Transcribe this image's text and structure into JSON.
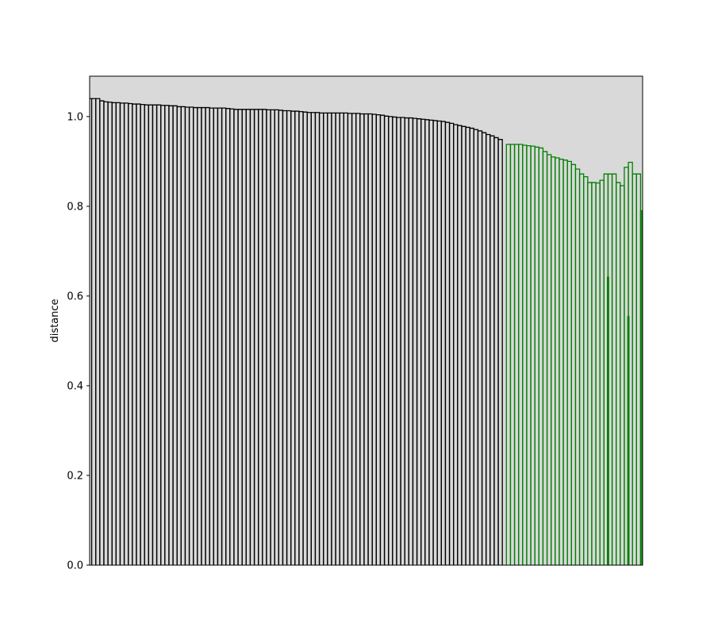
{
  "chart_data": {
    "type": "dendrogram",
    "title": "",
    "xlabel": "",
    "ylabel": "distance",
    "ylim": [
      0,
      1.09
    ],
    "yticks": [
      0.0,
      0.2,
      0.4,
      0.6,
      0.8,
      1.0
    ],
    "ytick_labels": [
      "0.0",
      "0.2",
      "0.4",
      "0.6",
      "0.8",
      "1.0"
    ],
    "background_color": "#d9d9d9",
    "grid": false,
    "leaf_count": 136,
    "clusters": [
      {
        "color": "#000000",
        "leaf_count": 102
      },
      {
        "color": "#008000",
        "leaf_count": 34
      }
    ],
    "black_merge_heights": [
      1.04,
      1.04,
      1.035,
      1.033,
      1.032,
      1.031,
      1.031,
      1.03,
      1.03,
      1.029,
      1.028,
      1.028,
      1.027,
      1.026,
      1.026,
      1.026,
      1.026,
      1.025,
      1.025,
      1.024,
      1.024,
      1.022,
      1.022,
      1.021,
      1.021,
      1.02,
      1.02,
      1.02,
      1.02,
      1.019,
      1.019,
      1.019,
      1.019,
      1.018,
      1.017,
      1.016,
      1.016,
      1.016,
      1.016,
      1.016,
      1.016,
      1.016,
      1.016,
      1.015,
      1.015,
      1.015,
      1.014,
      1.013,
      1.013,
      1.012,
      1.012,
      1.011,
      1.01,
      1.009,
      1.009,
      1.009,
      1.008,
      1.008,
      1.008,
      1.008,
      1.008,
      1.008,
      1.008,
      1.007,
      1.007,
      1.007,
      1.006,
      1.006,
      1.006,
      1.005,
      1.004,
      1.003,
      1.001,
      1.0,
      0.999,
      0.998,
      0.998,
      0.997,
      0.997,
      0.996,
      0.995,
      0.994,
      0.993,
      0.992,
      0.991,
      0.99,
      0.989,
      0.987,
      0.985,
      0.982,
      0.98,
      0.978,
      0.976,
      0.974,
      0.971,
      0.968,
      0.964,
      0.96,
      0.957,
      0.953,
      0.949,
      0.946
    ],
    "green_merge_heights": [
      0.938,
      0.938,
      0.938,
      0.938,
      0.936,
      0.935,
      0.934,
      0.932,
      0.93,
      0.922,
      0.915,
      0.91,
      0.908,
      0.905,
      0.903,
      0.9,
      0.893,
      0.883,
      0.872,
      0.866,
      0.853,
      0.853,
      0.852,
      0.858,
      0.872,
      0.872,
      0.872,
      0.853,
      0.846,
      0.887,
      0.898,
      0.872,
      0.872,
      0.79
    ],
    "green_internal_merges": [
      {
        "leaf": 25,
        "height": 0.642
      },
      {
        "leaf": 30,
        "height": 0.554
      }
    ]
  }
}
